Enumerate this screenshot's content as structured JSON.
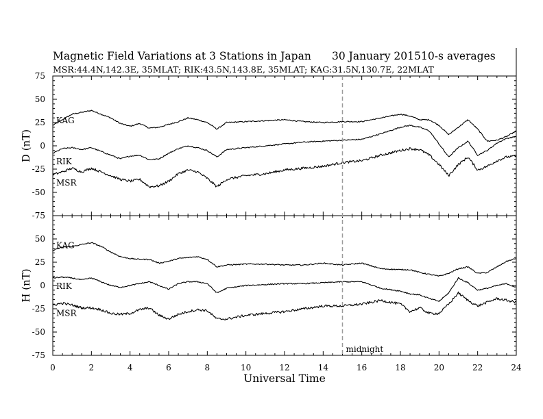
{
  "header": {
    "title": "Magnetic Field Variations at 3 Stations in Japan",
    "date": "30 January 2015",
    "averages": "10-s averages",
    "stations_line": "MSR:44.4N,142.3E, 35MLAT;  RIK:43.5N,143.8E, 35MLAT;  KAG:31.5N,130.7E, 22MLAT"
  },
  "chart_data": [
    {
      "type": "line",
      "panel": "D",
      "ylabel": "D (nT)",
      "ylim": [
        -75,
        75
      ],
      "yticks": [
        75,
        50,
        25,
        0,
        -25,
        -50,
        -75
      ],
      "xlim": [
        0,
        24
      ],
      "series": [
        {
          "name": "KAG",
          "x": [
            0,
            0.5,
            1,
            1.5,
            2,
            2.5,
            3,
            3.5,
            4,
            4.5,
            5,
            5.5,
            6,
            6.5,
            7,
            7.5,
            8,
            8.5,
            9,
            10,
            11,
            12,
            13,
            14,
            15,
            16,
            17,
            18,
            18.5,
            19,
            19.5,
            20,
            20.5,
            21,
            21.5,
            22,
            22.5,
            23,
            23.5,
            24
          ],
          "y": [
            22,
            28,
            34,
            36,
            38,
            34,
            30,
            24,
            21,
            24,
            19,
            20,
            23,
            26,
            30,
            28,
            25,
            18,
            25,
            26,
            27,
            28,
            26,
            25,
            26,
            26,
            30,
            34,
            32,
            28,
            28,
            22,
            12,
            20,
            28,
            18,
            5,
            6,
            10,
            16
          ]
        },
        {
          "name": "RIK",
          "x": [
            0,
            0.5,
            1,
            1.5,
            2,
            2.5,
            3,
            3.5,
            4,
            4.5,
            5,
            5.5,
            6,
            6.5,
            7,
            7.5,
            8,
            8.5,
            9,
            10,
            11,
            12,
            13,
            14,
            15,
            16,
            17,
            18,
            18.5,
            19,
            19.5,
            20,
            20.5,
            21,
            21.5,
            22,
            22.5,
            23,
            23.5,
            24
          ],
          "y": [
            -8,
            -3,
            -2,
            -4,
            -2,
            -6,
            -10,
            -14,
            -11,
            -10,
            -15,
            -14,
            -8,
            -3,
            0,
            -2,
            -5,
            -12,
            -4,
            -2,
            0,
            2,
            4,
            5,
            6,
            7,
            13,
            20,
            22,
            20,
            16,
            2,
            -12,
            -2,
            5,
            -10,
            -5,
            3,
            8,
            10
          ]
        },
        {
          "name": "MSR",
          "x": [
            0,
            0.5,
            1,
            1.5,
            2,
            2.5,
            3,
            3.5,
            4,
            4.5,
            5,
            5.5,
            6,
            6.5,
            7,
            7.5,
            8,
            8.5,
            9,
            10,
            11,
            12,
            13,
            14,
            15,
            16,
            17,
            18,
            18.5,
            19,
            19.5,
            20,
            20.5,
            21,
            21.5,
            22,
            22.5,
            23,
            23.5,
            24
          ],
          "y": [
            -31,
            -28,
            -24,
            -28,
            -24,
            -28,
            -32,
            -36,
            -38,
            -36,
            -44,
            -43,
            -38,
            -30,
            -26,
            -28,
            -35,
            -44,
            -36,
            -32,
            -30,
            -26,
            -24,
            -22,
            -18,
            -16,
            -10,
            -5,
            -3,
            -4,
            -10,
            -20,
            -32,
            -20,
            -12,
            -26,
            -22,
            -16,
            -12,
            -11
          ]
        }
      ]
    },
    {
      "type": "line",
      "panel": "H",
      "ylabel": "H (nT)",
      "ylim": [
        -75,
        75
      ],
      "yticks": [
        50,
        25,
        0,
        -25,
        -50,
        -75
      ],
      "xlim": [
        0,
        24
      ],
      "xticks": [
        0,
        2,
        4,
        6,
        8,
        10,
        12,
        14,
        16,
        18,
        20,
        22,
        24
      ],
      "xlabel": "Universal Time",
      "annotation": {
        "x": 15,
        "label": "midnight",
        "style": "dashed"
      },
      "series": [
        {
          "name": "KAG",
          "x": [
            0,
            0.5,
            1,
            1.5,
            2,
            2.5,
            3,
            3.5,
            4,
            4.5,
            5,
            5.5,
            6,
            6.5,
            7,
            7.5,
            8,
            8.5,
            9,
            10,
            11,
            12,
            13,
            14,
            15,
            16,
            17,
            18,
            18.5,
            19,
            19.5,
            20,
            20.5,
            21,
            21.5,
            22,
            22.5,
            23,
            23.5,
            24
          ],
          "y": [
            38,
            41,
            42,
            44,
            46,
            42,
            36,
            31,
            29,
            28,
            28,
            24,
            26,
            29,
            30,
            31,
            28,
            20,
            22,
            23,
            23,
            22,
            22,
            24,
            22,
            24,
            18,
            17,
            17,
            14,
            12,
            10,
            13,
            18,
            20,
            13,
            14,
            20,
            26,
            29
          ]
        },
        {
          "name": "RIK",
          "x": [
            0,
            0.5,
            1,
            1.5,
            2,
            2.5,
            3,
            3.5,
            4,
            4.5,
            5,
            5.5,
            6,
            6.5,
            7,
            7.5,
            8,
            8.5,
            9,
            10,
            11,
            12,
            13,
            14,
            15,
            16,
            17,
            18,
            18.5,
            19,
            19.5,
            20,
            20.5,
            21,
            21.5,
            22,
            22.5,
            23,
            23.5,
            24
          ],
          "y": [
            8,
            9,
            8,
            6,
            8,
            4,
            0,
            -2,
            0,
            2,
            4,
            0,
            -4,
            2,
            4,
            4,
            2,
            -8,
            -3,
            0,
            1,
            2,
            2,
            3,
            4,
            4,
            -3,
            -6,
            -9,
            -10,
            -14,
            -17,
            -8,
            8,
            3,
            -5,
            -3,
            0,
            2,
            -2
          ]
        },
        {
          "name": "MSR",
          "x": [
            0,
            0.5,
            1,
            1.5,
            2,
            2.5,
            3,
            3.5,
            4,
            4.5,
            5,
            5.5,
            6,
            6.5,
            7,
            7.5,
            8,
            8.5,
            9,
            10,
            11,
            12,
            13,
            14,
            15,
            16,
            17,
            18,
            18.5,
            19,
            19.5,
            20,
            20.5,
            21,
            21.5,
            22,
            22.5,
            23,
            23.5,
            24
          ],
          "y": [
            -21,
            -19,
            -21,
            -24,
            -24,
            -26,
            -30,
            -31,
            -30,
            -26,
            -24,
            -32,
            -36,
            -31,
            -28,
            -26,
            -27,
            -36,
            -36,
            -32,
            -30,
            -28,
            -25,
            -22,
            -22,
            -20,
            -16,
            -20,
            -28,
            -24,
            -30,
            -30,
            -20,
            -8,
            -16,
            -22,
            -18,
            -14,
            -16,
            -18
          ]
        }
      ]
    }
  ]
}
